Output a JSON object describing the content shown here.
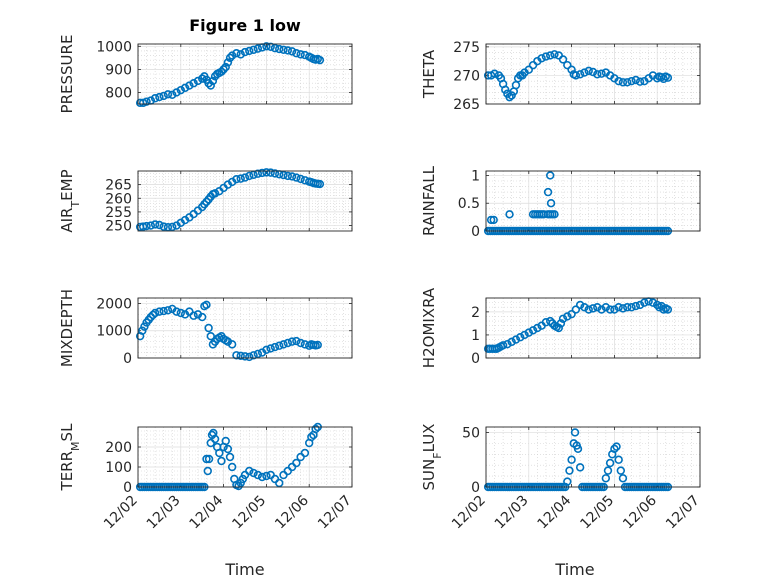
{
  "figure": {
    "title": "Figure 1 low"
  },
  "chart_data": [
    {
      "type": "scatter",
      "ylabel": "PRESSURE",
      "xlabel": "",
      "ylim": [
        750,
        1010
      ],
      "yticks": [
        800,
        900,
        1000
      ],
      "yticklabels": [
        "800",
        "900",
        "1000"
      ],
      "xlim": [
        0,
        5
      ],
      "xticks": [
        0,
        1,
        2,
        3,
        4,
        5
      ],
      "xticklabels": [],
      "grid": true,
      "x": [
        0.05,
        0.12,
        0.2,
        0.3,
        0.4,
        0.5,
        0.6,
        0.7,
        0.8,
        0.9,
        1.0,
        1.1,
        1.2,
        1.3,
        1.4,
        1.5,
        1.55,
        1.6,
        1.65,
        1.7,
        1.75,
        1.8,
        1.85,
        1.9,
        1.95,
        2.0,
        2.05,
        2.1,
        2.15,
        2.2,
        2.3,
        2.4,
        2.5,
        2.6,
        2.7,
        2.8,
        2.9,
        3.0,
        3.1,
        3.2,
        3.3,
        3.4,
        3.5,
        3.6,
        3.7,
        3.8,
        3.9,
        4.0,
        4.05,
        4.1,
        4.15,
        4.2,
        4.25
      ],
      "y": [
        755,
        755,
        760,
        765,
        775,
        780,
        785,
        792,
        790,
        800,
        810,
        820,
        830,
        840,
        850,
        860,
        870,
        855,
        840,
        830,
        850,
        870,
        880,
        885,
        890,
        900,
        910,
        930,
        950,
        960,
        970,
        965,
        975,
        980,
        985,
        990,
        995,
        1000,
        998,
        992,
        988,
        985,
        982,
        978,
        970,
        965,
        962,
        955,
        950,
        945,
        942,
        945,
        940
      ]
    },
    {
      "type": "scatter",
      "ylabel": "THETA",
      "xlabel": "",
      "ylim": [
        265,
        275.5
      ],
      "yticks": [
        265,
        270,
        275
      ],
      "yticklabels": [
        "265",
        "270",
        "275"
      ],
      "xlim": [
        0,
        5
      ],
      "xticks": [
        0,
        1,
        2,
        3,
        4,
        5
      ],
      "xticklabels": [],
      "grid": true,
      "x": [
        0.05,
        0.12,
        0.2,
        0.3,
        0.35,
        0.4,
        0.45,
        0.5,
        0.55,
        0.6,
        0.65,
        0.7,
        0.75,
        0.8,
        0.85,
        0.9,
        1.0,
        1.1,
        1.2,
        1.3,
        1.4,
        1.5,
        1.6,
        1.7,
        1.8,
        1.9,
        2.0,
        2.05,
        2.1,
        2.2,
        2.3,
        2.4,
        2.5,
        2.6,
        2.7,
        2.8,
        2.9,
        3.0,
        3.1,
        3.2,
        3.3,
        3.4,
        3.5,
        3.6,
        3.7,
        3.8,
        3.9,
        4.0,
        4.05,
        4.1,
        4.15,
        4.2,
        4.25
      ],
      "y": [
        270,
        270,
        270.3,
        270,
        269.5,
        268.5,
        267.5,
        266.8,
        266.2,
        266.5,
        267.2,
        268.3,
        269.5,
        270,
        270,
        270.5,
        271,
        271.8,
        272.5,
        273,
        273.3,
        273.5,
        273.7,
        273.5,
        272.8,
        271.8,
        271,
        270.2,
        270,
        270.2,
        270.5,
        270.8,
        270.6,
        270.2,
        270.3,
        270.5,
        270,
        269.5,
        269,
        268.8,
        268.8,
        269,
        269.2,
        268.9,
        269,
        269.5,
        270,
        269.5,
        269.8,
        269.7,
        269.4,
        269.8,
        269.6
      ]
    },
    {
      "type": "scatter",
      "ylabel": "AIR_TEMP",
      "xlabel": "",
      "ylim": [
        248,
        270
      ],
      "yticks": [
        250,
        255,
        260,
        265
      ],
      "yticklabels": [
        "250",
        "255",
        "260",
        "265"
      ],
      "xlim": [
        0,
        5
      ],
      "xticks": [
        0,
        1,
        2,
        3,
        4,
        5
      ],
      "xticklabels": [],
      "grid": true,
      "x": [
        0.05,
        0.12,
        0.2,
        0.3,
        0.4,
        0.5,
        0.6,
        0.7,
        0.8,
        0.9,
        1.0,
        1.1,
        1.2,
        1.3,
        1.4,
        1.5,
        1.55,
        1.6,
        1.65,
        1.7,
        1.75,
        1.8,
        1.9,
        2.0,
        2.1,
        2.2,
        2.3,
        2.4,
        2.5,
        2.6,
        2.7,
        2.8,
        2.9,
        3.0,
        3.1,
        3.2,
        3.3,
        3.4,
        3.5,
        3.6,
        3.7,
        3.8,
        3.9,
        4.0,
        4.05,
        4.1,
        4.15,
        4.2,
        4.25
      ],
      "y": [
        249.5,
        249.6,
        249.8,
        250,
        250.4,
        250.2,
        249.6,
        249.4,
        249.5,
        250,
        251,
        252,
        253,
        254.2,
        255.5,
        256.8,
        257.8,
        258.7,
        259.6,
        260.6,
        261.5,
        261.8,
        262.6,
        263.8,
        265,
        266,
        267,
        267.2,
        267.6,
        268.2,
        268.6,
        269,
        269.3,
        269.5,
        269.4,
        269.1,
        268.8,
        268.5,
        268.2,
        268,
        267.6,
        267.1,
        266.6,
        266.1,
        265.9,
        265.6,
        265.4,
        265.3,
        265.2
      ]
    },
    {
      "type": "scatter",
      "ylabel": "RAINFALL",
      "xlabel": "",
      "ylim": [
        0,
        1.08
      ],
      "yticks": [
        0,
        0.5,
        1
      ],
      "yticklabels": [
        "0",
        "0.5",
        "1"
      ],
      "xlim": [
        0,
        5
      ],
      "xticks": [
        0,
        1,
        2,
        3,
        4,
        5
      ],
      "xticklabels": [],
      "grid": true,
      "x_zero": [
        0.05,
        0.1,
        0.15,
        0.2,
        0.25,
        0.3,
        0.35,
        0.4,
        0.45,
        0.5,
        0.55,
        0.6,
        0.65,
        0.7,
        0.75,
        0.8,
        0.85,
        0.9,
        0.95,
        1.0,
        1.05,
        1.1,
        1.15,
        1.2,
        1.25,
        1.3,
        1.35,
        1.4,
        1.45,
        1.5,
        1.55,
        1.6,
        1.65,
        1.7,
        1.75,
        1.8,
        1.85,
        1.9,
        1.95,
        2.0,
        2.05,
        2.1,
        2.15,
        2.2,
        2.25,
        2.3,
        2.35,
        2.4,
        2.45,
        2.5,
        2.55,
        2.6,
        2.65,
        2.7,
        2.75,
        2.8,
        2.85,
        2.9,
        2.95,
        3.0,
        3.05,
        3.1,
        3.15,
        3.2,
        3.25,
        3.3,
        3.35,
        3.4,
        3.45,
        3.5,
        3.55,
        3.6,
        3.65,
        3.7,
        3.75,
        3.8,
        3.85,
        3.9,
        3.95,
        4.0,
        4.05,
        4.1,
        4.15,
        4.2,
        4.25
      ],
      "x": [
        0.12,
        0.18,
        0.55,
        1.1,
        1.15,
        1.2,
        1.25,
        1.3,
        1.35,
        1.45,
        1.5,
        1.55,
        1.6,
        1.45,
        1.52,
        1.5
      ],
      "y": [
        0.2,
        0.2,
        0.3,
        0.3,
        0.3,
        0.3,
        0.3,
        0.3,
        0.3,
        0.3,
        0.3,
        0.3,
        0.3,
        0.7,
        0.5,
        1.0
      ]
    },
    {
      "type": "scatter",
      "ylabel": "MIXDEPTH",
      "xlabel": "",
      "ylim": [
        0,
        2200
      ],
      "yticks": [
        0,
        1000,
        2000
      ],
      "yticklabels": [
        "0",
        "1000",
        "2000"
      ],
      "xlim": [
        0,
        5
      ],
      "xticks": [
        0,
        1,
        2,
        3,
        4,
        5
      ],
      "xticklabels": [],
      "grid": true,
      "x": [
        0.05,
        0.1,
        0.15,
        0.2,
        0.25,
        0.3,
        0.35,
        0.4,
        0.5,
        0.6,
        0.7,
        0.8,
        0.9,
        1.0,
        1.1,
        1.2,
        1.3,
        1.4,
        1.5,
        1.55,
        1.6,
        1.65,
        1.7,
        1.75,
        1.8,
        1.85,
        1.9,
        1.95,
        2.0,
        2.05,
        2.1,
        2.2,
        2.3,
        2.4,
        2.5,
        2.6,
        2.7,
        2.8,
        2.9,
        3.0,
        3.1,
        3.2,
        3.3,
        3.4,
        3.5,
        3.6,
        3.7,
        3.8,
        3.9,
        4.0,
        4.05,
        4.1,
        4.15,
        4.2
      ],
      "y": [
        800,
        1000,
        1150,
        1300,
        1400,
        1500,
        1580,
        1650,
        1700,
        1720,
        1750,
        1800,
        1700,
        1650,
        1600,
        1700,
        1550,
        1600,
        1500,
        1900,
        1950,
        1100,
        800,
        500,
        600,
        700,
        750,
        800,
        700,
        650,
        600,
        500,
        100,
        80,
        60,
        40,
        100,
        150,
        200,
        300,
        350,
        400,
        450,
        500,
        550,
        600,
        620,
        550,
        500,
        450,
        500,
        480,
        460,
        480
      ]
    },
    {
      "type": "scatter",
      "ylabel": "H2OMIXRA",
      "xlabel": "",
      "ylim": [
        0,
        2.6
      ],
      "yticks": [
        0,
        1,
        2
      ],
      "yticklabels": [
        "0",
        "1",
        "2"
      ],
      "xlim": [
        0,
        5
      ],
      "xticks": [
        0,
        1,
        2,
        3,
        4,
        5
      ],
      "xticklabels": [],
      "grid": true,
      "x": [
        0.05,
        0.1,
        0.15,
        0.2,
        0.25,
        0.3,
        0.35,
        0.4,
        0.5,
        0.6,
        0.7,
        0.8,
        0.9,
        1.0,
        1.1,
        1.2,
        1.3,
        1.4,
        1.5,
        1.55,
        1.6,
        1.65,
        1.7,
        1.75,
        1.8,
        1.9,
        2.0,
        2.1,
        2.2,
        2.3,
        2.4,
        2.5,
        2.6,
        2.7,
        2.8,
        2.9,
        3.0,
        3.1,
        3.2,
        3.3,
        3.4,
        3.5,
        3.6,
        3.7,
        3.8,
        3.9,
        4.0,
        4.05,
        4.1,
        4.15,
        4.2,
        4.25
      ],
      "y": [
        0.4,
        0.4,
        0.4,
        0.4,
        0.4,
        0.45,
        0.5,
        0.55,
        0.6,
        0.7,
        0.8,
        0.9,
        1.0,
        1.1,
        1.2,
        1.3,
        1.4,
        1.55,
        1.6,
        1.5,
        1.4,
        1.35,
        1.3,
        1.5,
        1.7,
        1.8,
        1.9,
        2.1,
        2.3,
        2.2,
        2.1,
        2.15,
        2.2,
        2.1,
        2.2,
        2.1,
        2.1,
        2.2,
        2.15,
        2.2,
        2.2,
        2.25,
        2.3,
        2.4,
        2.45,
        2.4,
        2.3,
        2.2,
        2.25,
        2.1,
        2.15,
        2.1
      ]
    },
    {
      "type": "scatter",
      "ylabel": "TERR_MSL",
      "xlabel": "Time",
      "ylim": [
        0,
        300
      ],
      "yticks": [
        0,
        100,
        200
      ],
      "yticklabels": [
        "0",
        "100",
        "200"
      ],
      "xlim": [
        0,
        5
      ],
      "xticks": [
        0,
        1,
        2,
        3,
        4,
        5
      ],
      "xticklabels": [
        "12/02",
        "12/03",
        "12/04",
        "12/05",
        "12/06",
        "12/07"
      ],
      "grid": true,
      "x": [
        0.05,
        0.1,
        0.15,
        0.2,
        0.25,
        0.3,
        0.35,
        0.4,
        0.45,
        0.5,
        0.55,
        0.6,
        0.65,
        0.7,
        0.75,
        0.8,
        0.85,
        0.9,
        0.95,
        1.0,
        1.05,
        1.1,
        1.15,
        1.2,
        1.25,
        1.3,
        1.35,
        1.4,
        1.45,
        1.5,
        1.55,
        1.6,
        1.63,
        1.66,
        1.7,
        1.73,
        1.76,
        1.8,
        1.85,
        1.9,
        1.95,
        2.0,
        2.05,
        2.1,
        2.15,
        2.2,
        2.25,
        2.3,
        2.35,
        2.4,
        2.45,
        2.5,
        2.6,
        2.7,
        2.8,
        2.9,
        3.0,
        3.1,
        3.2,
        3.3,
        3.4,
        3.5,
        3.6,
        3.7,
        3.8,
        3.9,
        4.0,
        4.05,
        4.1,
        4.15,
        4.2
      ],
      "y": [
        0,
        0,
        0,
        0,
        0,
        0,
        0,
        0,
        0,
        0,
        0,
        0,
        0,
        0,
        0,
        0,
        0,
        0,
        0,
        0,
        0,
        0,
        0,
        0,
        0,
        0,
        0,
        0,
        0,
        0,
        0,
        140,
        80,
        140,
        220,
        260,
        270,
        240,
        200,
        170,
        130,
        200,
        230,
        190,
        150,
        100,
        40,
        10,
        5,
        20,
        40,
        60,
        80,
        70,
        60,
        50,
        55,
        60,
        40,
        20,
        60,
        80,
        100,
        120,
        150,
        170,
        220,
        250,
        260,
        290,
        300
      ]
    },
    {
      "type": "scatter",
      "ylabel": "SUN_FLUX",
      "xlabel": "Time",
      "ylim": [
        0,
        55
      ],
      "yticks": [
        0,
        50
      ],
      "yticklabels": [
        "0",
        "50"
      ],
      "xlim": [
        0,
        5
      ],
      "xticks": [
        0,
        1,
        2,
        3,
        4,
        5
      ],
      "xticklabels": [
        "12/02",
        "12/03",
        "12/04",
        "12/05",
        "12/06",
        "12/07"
      ],
      "grid": true,
      "x_zero": [
        0.05,
        0.1,
        0.15,
        0.2,
        0.25,
        0.3,
        0.35,
        0.4,
        0.45,
        0.5,
        0.55,
        0.6,
        0.65,
        0.7,
        0.75,
        0.8,
        0.85,
        0.9,
        0.95,
        1.0,
        1.05,
        1.1,
        1.15,
        1.2,
        1.25,
        1.3,
        1.35,
        1.4,
        1.45,
        1.5,
        1.55,
        1.6,
        1.65,
        1.7,
        1.75,
        1.8,
        1.85,
        2.25,
        2.3,
        2.35,
        2.4,
        2.45,
        2.5,
        2.55,
        2.6,
        2.65,
        2.7,
        2.75,
        3.25,
        3.3,
        3.35,
        3.4,
        3.45,
        3.5,
        3.55,
        3.6,
        3.65,
        3.7,
        3.75,
        3.8,
        3.85,
        3.9,
        3.95,
        4.0,
        4.05,
        4.1,
        4.15,
        4.2,
        4.25
      ],
      "x": [
        1.9,
        1.95,
        2.0,
        2.05,
        2.08,
        2.12,
        2.15,
        2.2,
        2.8,
        2.85,
        2.9,
        2.95,
        3.0,
        3.05,
        3.1,
        3.15,
        3.2
      ],
      "y": [
        5,
        15,
        25,
        40,
        50,
        38,
        35,
        18,
        8,
        15,
        22,
        30,
        35,
        37,
        25,
        15,
        8
      ]
    }
  ]
}
